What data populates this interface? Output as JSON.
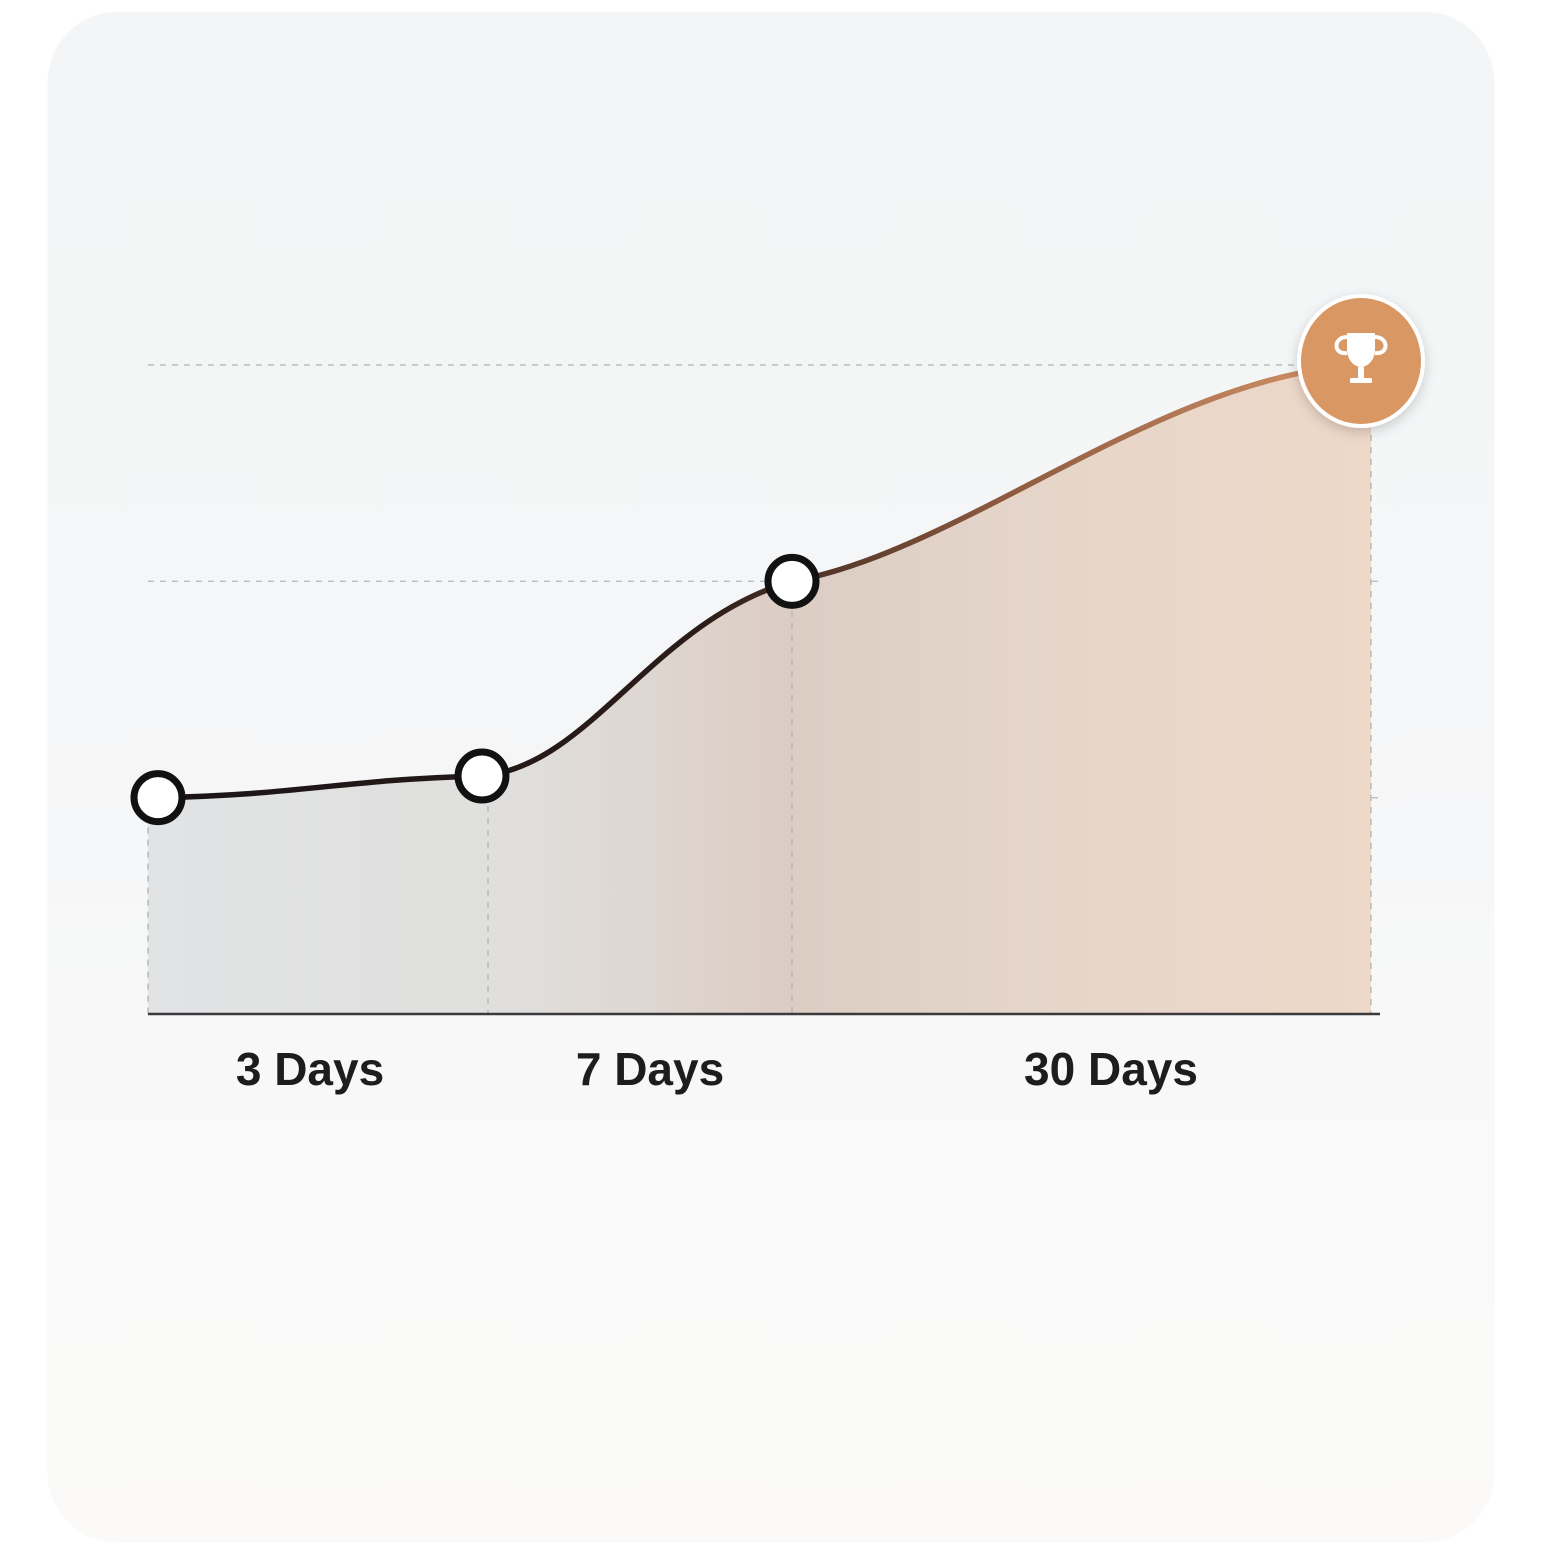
{
  "chart_data": {
    "type": "area",
    "categories": [
      "3 Days",
      "7 Days",
      "30 Days"
    ],
    "milestones": [
      {
        "label": "",
        "value": 1
      },
      {
        "label": "3 Days",
        "value": 1.1
      },
      {
        "label": "7 Days",
        "value": 2
      },
      {
        "label": "30 Days",
        "value": 3
      }
    ],
    "ylim": [
      0,
      3
    ],
    "grid": true,
    "end_marker_icon": "trophy-icon",
    "colors": {
      "line_start": "#1b1416",
      "line_end": "#d6956a",
      "accent": "#d99764",
      "marker_fill": "#ffffff",
      "marker_stroke": "#111111"
    }
  }
}
